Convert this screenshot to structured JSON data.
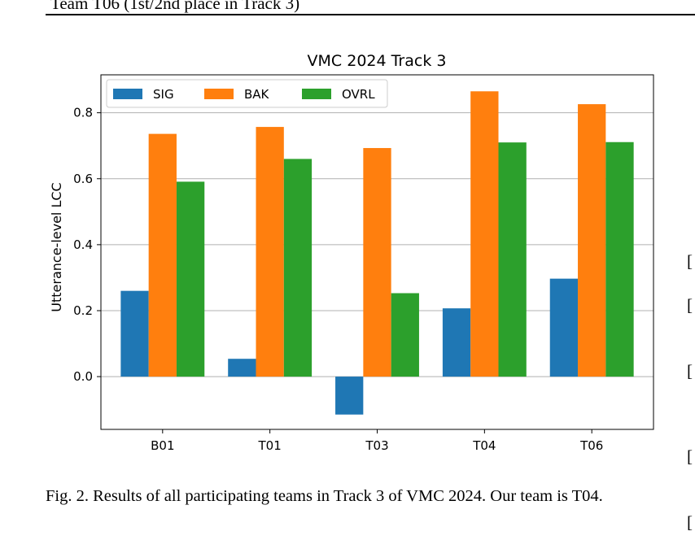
{
  "page": {
    "top_fragment": "Team T06 (1st/2nd place in Track 3)",
    "right_brackets": [
      "[",
      "[",
      "[",
      "[",
      "["
    ]
  },
  "caption": "Fig. 2.  Results of all participating teams in Track 3 of VMC 2024. Our team is T04.",
  "chart_data": {
    "type": "bar",
    "title": "VMC 2024 Track 3",
    "xlabel": "",
    "ylabel": "Utterance-level LCC",
    "categories": [
      "B01",
      "T01",
      "T03",
      "T04",
      "T06"
    ],
    "series": [
      {
        "name": "SIG",
        "color": "#1f77b4",
        "values": [
          0.26,
          0.054,
          -0.115,
          0.207,
          0.297
        ]
      },
      {
        "name": "BAK",
        "color": "#ff7f0e",
        "values": [
          0.736,
          0.757,
          0.693,
          0.865,
          0.826
        ]
      },
      {
        "name": "OVRL",
        "color": "#2ca02c",
        "values": [
          0.591,
          0.66,
          0.253,
          0.71,
          0.711
        ]
      }
    ],
    "ylim": [
      -0.16,
      0.915
    ],
    "yticks": [
      "0.0",
      "0.2",
      "0.4",
      "0.6",
      "0.8"
    ],
    "grid": "horizontal",
    "legend": "top-left"
  }
}
